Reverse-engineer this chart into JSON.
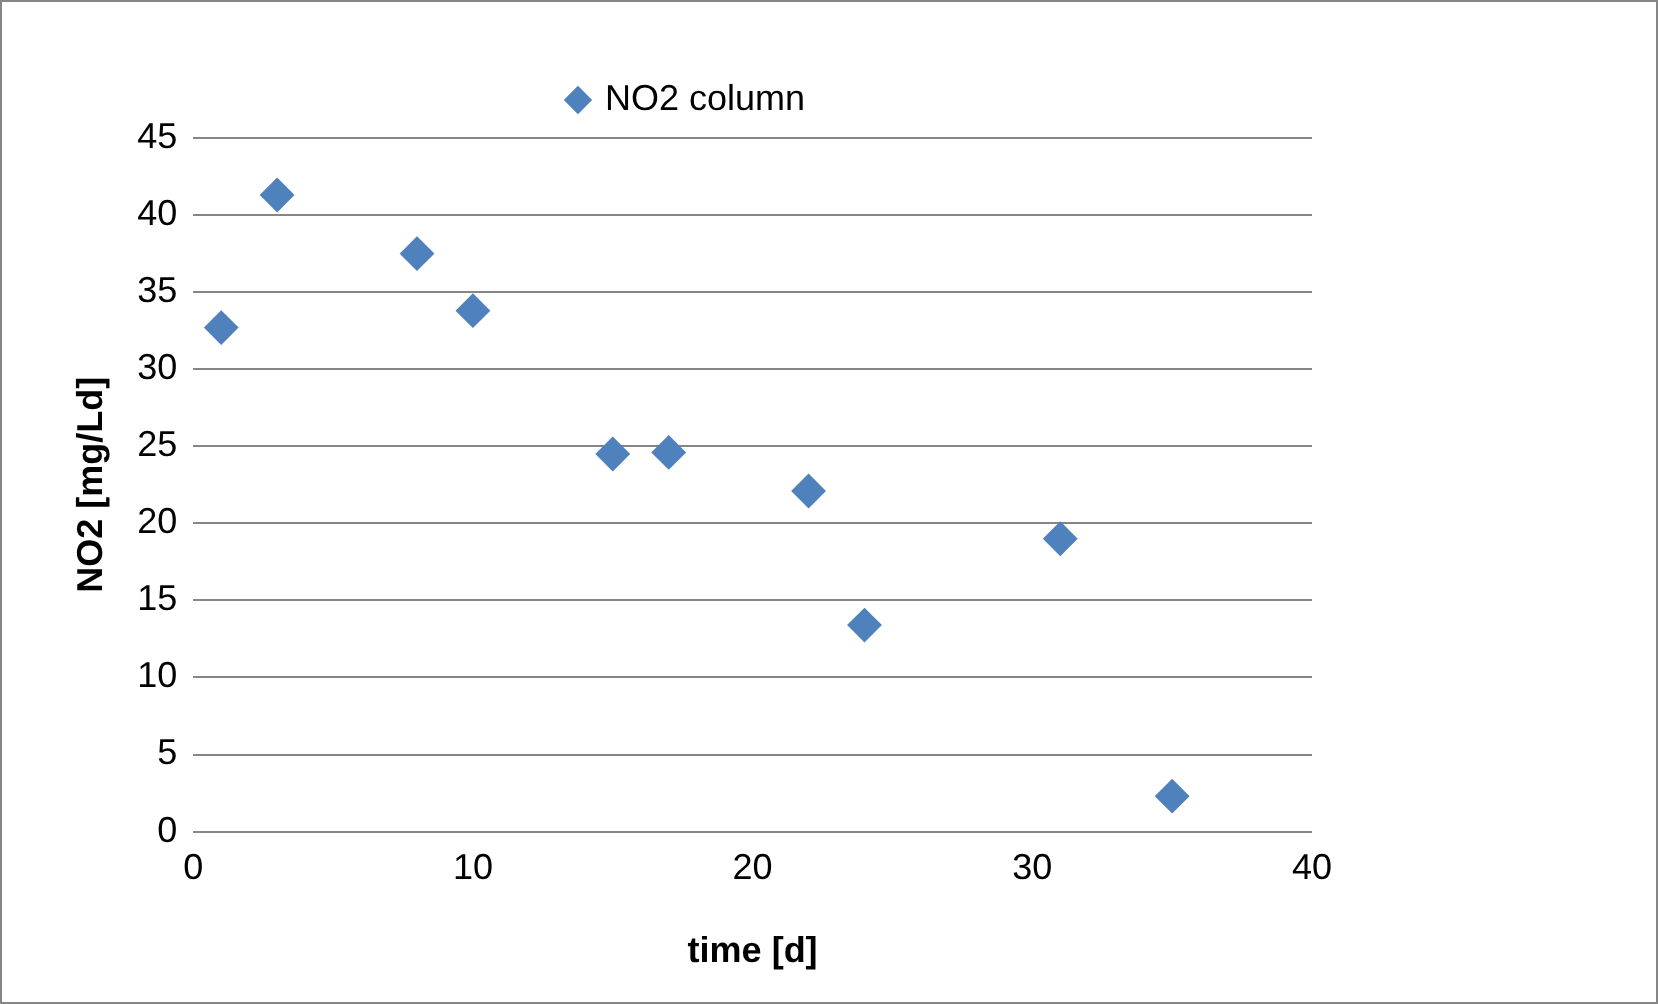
{
  "chart_data": {
    "type": "scatter",
    "xlabel": "time [d]",
    "ylabel": "NO2 [mg/Ld]",
    "x": [
      1,
      3,
      8,
      10,
      15,
      17,
      22,
      24,
      31,
      35
    ],
    "series": [
      {
        "name": "NO2 column",
        "color": "#4f81bd",
        "values": [
          32.7,
          41.3,
          37.5,
          33.8,
          24.5,
          24.6,
          22.1,
          13.4,
          19,
          2.3
        ]
      }
    ],
    "xlim": [
      0,
      40
    ],
    "xticks": [
      0,
      10,
      20,
      30,
      40
    ],
    "ylim": [
      0,
      45
    ],
    "yticks": [
      0,
      5,
      10,
      15,
      20,
      25,
      30,
      35,
      40,
      45
    ],
    "grid": "y",
    "legend": "top",
    "marker": "diamond"
  }
}
